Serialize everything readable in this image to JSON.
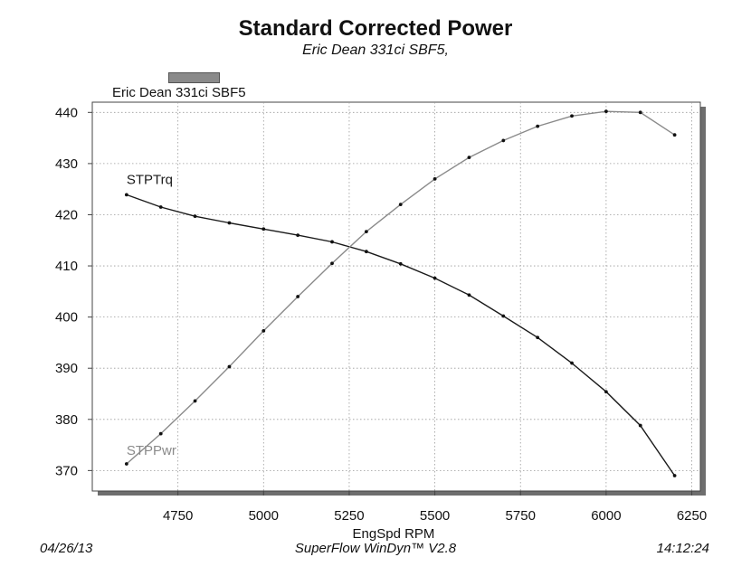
{
  "header": {
    "title": "Standard Corrected Power",
    "subtitle": "Eric Dean 331ci SBF5,"
  },
  "legend": {
    "label": "Eric Dean 331ci SBF5",
    "swatch_color": "#8a8a8a"
  },
  "footer": {
    "date": "04/26/13",
    "software": "SuperFlow WinDyn™ V2.8",
    "time": "14:12:24"
  },
  "chart_data": {
    "type": "line",
    "title": "Standard Corrected Power",
    "xlabel": "EngSpd  RPM",
    "ylabel": "",
    "xlim": [
      4500,
      6275
    ],
    "ylim": [
      366,
      442
    ],
    "xticks": [
      4750,
      5000,
      5250,
      5500,
      5750,
      6000,
      6250
    ],
    "yticks": [
      370,
      380,
      390,
      400,
      410,
      420,
      430,
      440
    ],
    "grid": true,
    "x": [
      4600,
      4700,
      4800,
      4900,
      5000,
      5100,
      5200,
      5300,
      5400,
      5500,
      5600,
      5700,
      5800,
      5900,
      6000,
      6100,
      6200
    ],
    "series": [
      {
        "name": "STPTrq",
        "color": "#1a1a1a",
        "values": [
          423.9,
          421.5,
          419.7,
          418.4,
          417.2,
          416.0,
          414.7,
          412.8,
          410.4,
          407.6,
          404.3,
          400.2,
          396.0,
          391.0,
          385.4,
          378.8,
          369.0
        ]
      },
      {
        "name": "STPPwr",
        "color": "#8a8a8a",
        "values": [
          371.3,
          377.2,
          383.6,
          390.3,
          397.3,
          404.0,
          410.5,
          416.7,
          422.0,
          427.0,
          431.2,
          434.5,
          437.3,
          439.3,
          440.2,
          440.0,
          435.6
        ]
      }
    ]
  }
}
